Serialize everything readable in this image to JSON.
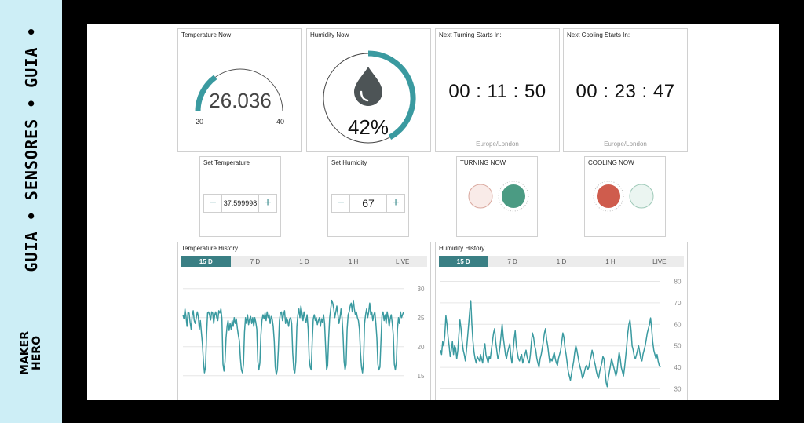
{
  "sidebar": {
    "banner": "GUIA • SENSORES • GUIA •",
    "logo_line1": "MAKER",
    "logo_line2": "HERO"
  },
  "temperature_now": {
    "title": "Temperature Now",
    "value": "26.036",
    "min": "20",
    "max": "40",
    "level": 0.3
  },
  "humidity_now": {
    "title": "Humidity Now",
    "value": "42%",
    "level": 0.42,
    "icon": "water-drop-icon"
  },
  "turning_timer": {
    "title": "Next Turning Starts In:",
    "time": "00 : 11 : 50",
    "timezone": "Europe/London"
  },
  "cooling_timer": {
    "title": "Next Cooling Starts In:",
    "time": "00 : 23 : 47",
    "timezone": "Europe/London"
  },
  "set_temperature": {
    "title": "Set Temperature",
    "value": "37.599998",
    "minus": "−",
    "plus": "+"
  },
  "set_humidity": {
    "title": "Set Humidity",
    "value": "67",
    "minus": "−",
    "plus": "+"
  },
  "turning_now": {
    "title": "TURNING NOW",
    "off_color": "#f9ebe8",
    "on_color": "#4b9b83"
  },
  "cooling_now": {
    "title": "COOLING NOW",
    "on_color": "#cf5c4d",
    "off_color": "#ebf5f1"
  },
  "temp_history": {
    "title": "Temperature History",
    "tabs": [
      "15 D",
      "7 D",
      "1 D",
      "1 H",
      "LIVE"
    ],
    "active_tab": 0
  },
  "hum_history": {
    "title": "Humidity History",
    "tabs": [
      "15 D",
      "7 D",
      "1 D",
      "1 H",
      "LIVE"
    ],
    "active_tab": 0
  },
  "colors": {
    "accent": "#3a9aa0",
    "tab_active": "#3a7f84"
  },
  "chart_data": [
    {
      "type": "line",
      "ylim": [
        12,
        32
      ],
      "yticks": [
        30,
        25,
        20,
        15
      ],
      "color": "#3a9aa0",
      "values": [
        25.5,
        24.8,
        26.5,
        25.2,
        23.5,
        26.0,
        25.8,
        24.2,
        23.0,
        25.5,
        26.2,
        24.5,
        24.0,
        25.0,
        26.0,
        25.2,
        23.0,
        24.5,
        22.5,
        20.5,
        17.5,
        15.5,
        16.5,
        22.0,
        25.8,
        26.0,
        25.4,
        24.6,
        26.0,
        25.8,
        24.0,
        25.5,
        26.0,
        25.0,
        24.5,
        26.2,
        25.8,
        26.5,
        24.8,
        17.0,
        15.8,
        17.5,
        21.5,
        23.5,
        24.5,
        22.8,
        24.0,
        23.0,
        24.5,
        23.5,
        25.0,
        24.0,
        24.8,
        23.2,
        22.0,
        21.0,
        18.0,
        16.0,
        15.5,
        17.0,
        22.5,
        25.0,
        24.0,
        25.5,
        23.8,
        24.8,
        25.2,
        24.0,
        25.0,
        23.5,
        25.0,
        24.2,
        23.0,
        17.5,
        16.0,
        17.2,
        22.0,
        24.5,
        25.5,
        24.8,
        25.8,
        24.5,
        26.0,
        25.0,
        25.5,
        24.0,
        25.2,
        24.8,
        23.5,
        21.0,
        16.5,
        15.2,
        16.0,
        19.5,
        24.5,
        25.8,
        26.0,
        24.5,
        25.5,
        26.2,
        24.0,
        25.0,
        24.5,
        23.5,
        24.8,
        25.0,
        24.0,
        19.0,
        16.0,
        15.5,
        17.5,
        23.5,
        25.5,
        26.5,
        25.0,
        27.0,
        25.8,
        24.5,
        26.0,
        25.0,
        24.2,
        25.5,
        23.0,
        18.0,
        16.5,
        16.0,
        21.0,
        24.8,
        25.5,
        24.5,
        25.0,
        23.8,
        24.5,
        25.0,
        23.5,
        24.8,
        24.2,
        25.5,
        24.0,
        20.0,
        16.0,
        16.8,
        21.5,
        25.0,
        26.5,
        28.0,
        27.5,
        26.5,
        25.0,
        26.0,
        27.0,
        25.5,
        24.0,
        25.0,
        26.5,
        25.0,
        22.0,
        17.5,
        16.0,
        17.0,
        23.0,
        25.5,
        26.0,
        27.0,
        27.5,
        26.0,
        28.0,
        26.5,
        25.5,
        26.0,
        25.0,
        24.5,
        23.0,
        19.0,
        16.5,
        15.5,
        17.5,
        24.0,
        25.5,
        26.5,
        25.0,
        26.0,
        27.5,
        25.5,
        26.0,
        24.5,
        25.5,
        26.0,
        24.0,
        21.5,
        17.0,
        16.0,
        16.5,
        21.0,
        25.5,
        26.0,
        24.5,
        25.5,
        24.0,
        26.0,
        25.0,
        23.5,
        24.8,
        25.5,
        24.0,
        22.0,
        17.0,
        16.0,
        17.5,
        23.0,
        25.0,
        24.0,
        26.0,
        25.0,
        25.5,
        26.0
      ]
    },
    {
      "type": "line",
      "ylim": [
        28,
        82
      ],
      "yticks": [
        80,
        70,
        60,
        50,
        40,
        30
      ],
      "color": "#3a9aa0",
      "values": [
        48,
        46,
        52,
        50,
        55,
        64,
        60,
        54,
        50,
        45,
        48,
        52,
        46,
        50,
        49,
        44,
        48,
        55,
        62,
        58,
        52,
        48,
        46,
        43,
        48,
        54,
        60,
        66,
        71,
        60,
        52,
        47,
        44,
        42,
        45,
        44,
        43,
        46,
        44,
        42,
        48,
        51,
        46,
        44,
        42,
        45,
        44,
        48,
        52,
        56,
        58,
        52,
        48,
        44,
        46,
        50,
        55,
        60,
        54,
        50,
        46,
        44,
        47,
        49,
        51,
        45,
        42,
        47,
        53,
        57,
        50,
        47,
        44,
        43,
        45,
        46,
        42,
        44,
        46,
        48,
        45,
        43,
        42,
        46,
        52,
        56,
        54,
        50,
        48,
        44,
        42,
        40,
        44,
        46,
        49,
        52,
        56,
        58,
        53,
        50,
        46,
        42,
        44,
        43,
        45,
        47,
        44,
        42,
        41,
        44,
        46,
        48,
        52,
        56,
        54,
        49,
        46,
        42,
        38,
        36,
        34,
        37,
        40,
        43,
        47,
        50,
        48,
        45,
        42,
        40,
        38,
        35,
        36,
        38,
        40,
        41,
        39,
        40,
        43,
        45,
        48,
        46,
        43,
        41,
        38,
        36,
        35,
        38,
        40,
        42,
        45,
        44,
        38,
        33,
        31,
        35,
        38,
        41,
        44,
        42,
        40,
        38,
        36,
        38,
        43,
        47,
        44,
        40,
        38,
        36,
        40,
        45,
        50,
        56,
        60,
        62,
        57,
        50,
        48,
        45,
        44,
        46,
        48,
        50,
        47,
        44,
        43,
        46,
        48,
        50,
        53,
        56,
        58,
        60,
        63,
        58,
        52,
        48,
        46,
        44,
        46,
        43,
        41,
        40
      ]
    }
  ]
}
